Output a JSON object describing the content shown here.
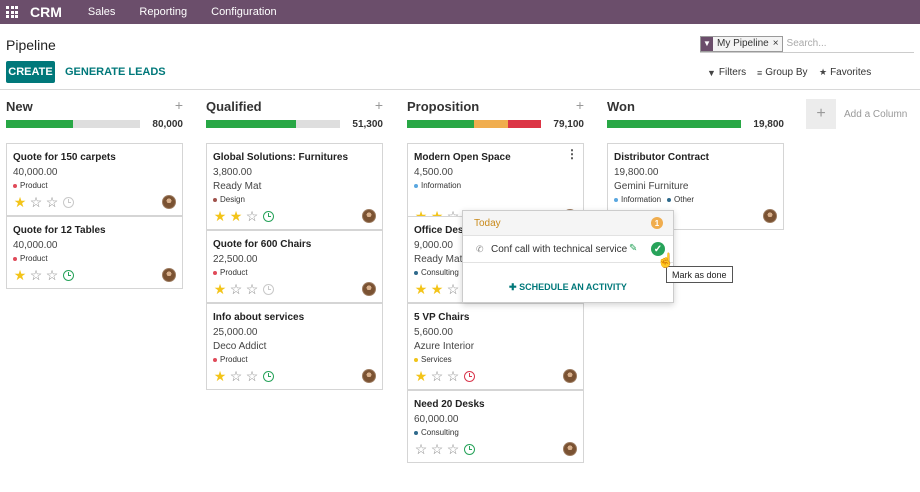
{
  "navbar": {
    "app": "CRM",
    "menu": [
      "Sales",
      "Reporting",
      "Configuration"
    ]
  },
  "control_panel": {
    "title": "Pipeline",
    "create_label": "CREATE",
    "generate_label": "GENERATE LEADS",
    "facet_label": "My Pipeline",
    "facet_remove": "×",
    "search_placeholder": "Search...",
    "filters_label": "Filters",
    "groupby_label": "Group By",
    "favorites_label": "Favorites"
  },
  "columns": [
    {
      "title": "New",
      "total": "80,000",
      "plus": "+",
      "progress": [
        {
          "color": "#28a745",
          "fraction": 0.5
        }
      ],
      "cards": [
        {
          "title": "Quote for 150 carpets",
          "amount": "40,000.00",
          "company": "",
          "tags": [
            {
              "label": "Product",
              "color": "#e04a59"
            }
          ],
          "stars": 1,
          "activity": "grey"
        },
        {
          "title": "Quote for 12 Tables",
          "amount": "40,000.00",
          "company": "",
          "tags": [
            {
              "label": "Product",
              "color": "#e04a59"
            }
          ],
          "stars": 1,
          "activity": "green"
        }
      ]
    },
    {
      "title": "Qualified",
      "total": "51,300",
      "plus": "+",
      "progress": [
        {
          "color": "#28a745",
          "fraction": 0.67
        }
      ],
      "cards": [
        {
          "title": "Global Solutions: Furnitures",
          "amount": "3,800.00",
          "company": "Ready Mat",
          "tags": [
            {
              "label": "Design",
              "color": "#a0524c"
            }
          ],
          "stars": 2,
          "activity": "green"
        },
        {
          "title": "Quote for 600 Chairs",
          "amount": "22,500.00",
          "company": "",
          "tags": [
            {
              "label": "Product",
              "color": "#e04a59"
            }
          ],
          "stars": 1,
          "activity": "grey"
        },
        {
          "title": "Info about services",
          "amount": "25,000.00",
          "company": "Deco Addict",
          "tags": [
            {
              "label": "Product",
              "color": "#e04a59"
            }
          ],
          "stars": 1,
          "activity": "green"
        }
      ]
    },
    {
      "title": "Proposition",
      "total": "79,100",
      "plus": "+",
      "progress": [
        {
          "color": "#28a745",
          "fraction": 0.5
        },
        {
          "color": "#f0ad4e",
          "fraction": 0.25
        },
        {
          "color": "#dc3545",
          "fraction": 0.25
        }
      ],
      "cards": [
        {
          "title": "Modern Open Space",
          "amount": "4,500.00",
          "company": "",
          "tags": [
            {
              "label": "Information",
              "color": "#5aa7e0"
            }
          ],
          "stars": 2,
          "activity": "orange",
          "kebab": "⋮"
        },
        {
          "title": "Office Design",
          "amount": "9,000.00",
          "company": "Ready Mat",
          "tags": [
            {
              "label": "Consulting",
              "color": "#2f6a8c"
            }
          ],
          "stars": 2,
          "activity": "none"
        },
        {
          "title": "5 VP Chairs",
          "amount": "5,600.00",
          "company": "Azure Interior",
          "tags": [
            {
              "label": "Services",
              "color": "#f0c419"
            }
          ],
          "stars": 1,
          "activity": "red"
        },
        {
          "title": "Need 20 Desks",
          "amount": "60,000.00",
          "company": "",
          "tags": [
            {
              "label": "Consulting",
              "color": "#2f6a8c"
            }
          ],
          "stars": 0,
          "activity": "green"
        }
      ]
    },
    {
      "title": "Won",
      "total": "19,800",
      "plus": "",
      "progress": [
        {
          "color": "#28a745",
          "fraction": 1.0
        }
      ],
      "cards": [
        {
          "title": "Distributor Contract",
          "amount": "19,800.00",
          "company": "Gemini Furniture",
          "tags": [
            {
              "label": "Information",
              "color": "#5aa7e0"
            },
            {
              "label": "Other",
              "color": "#2f6a8c"
            }
          ],
          "stars": 0,
          "activity": "none"
        }
      ]
    }
  ],
  "add_column": {
    "plus": "+",
    "label": "Add a Column"
  },
  "activity_popover": {
    "header": "Today",
    "badge": "1",
    "summary": "Conf call with technical service",
    "schedule_label": "SCHEDULE AN ACTIVITY",
    "tooltip": "Mark as done"
  },
  "icons": {
    "apps": "apps-grid-icon",
    "filter": "funnel-icon",
    "groupby": "list-icon",
    "favorites": "star-icon",
    "phone": "phone-icon",
    "edit": "pencil-icon",
    "done": "check-circle-icon"
  },
  "colors": {
    "navbar": "#6b4e6b",
    "primary": "#00787a",
    "star": "#f3c419"
  }
}
